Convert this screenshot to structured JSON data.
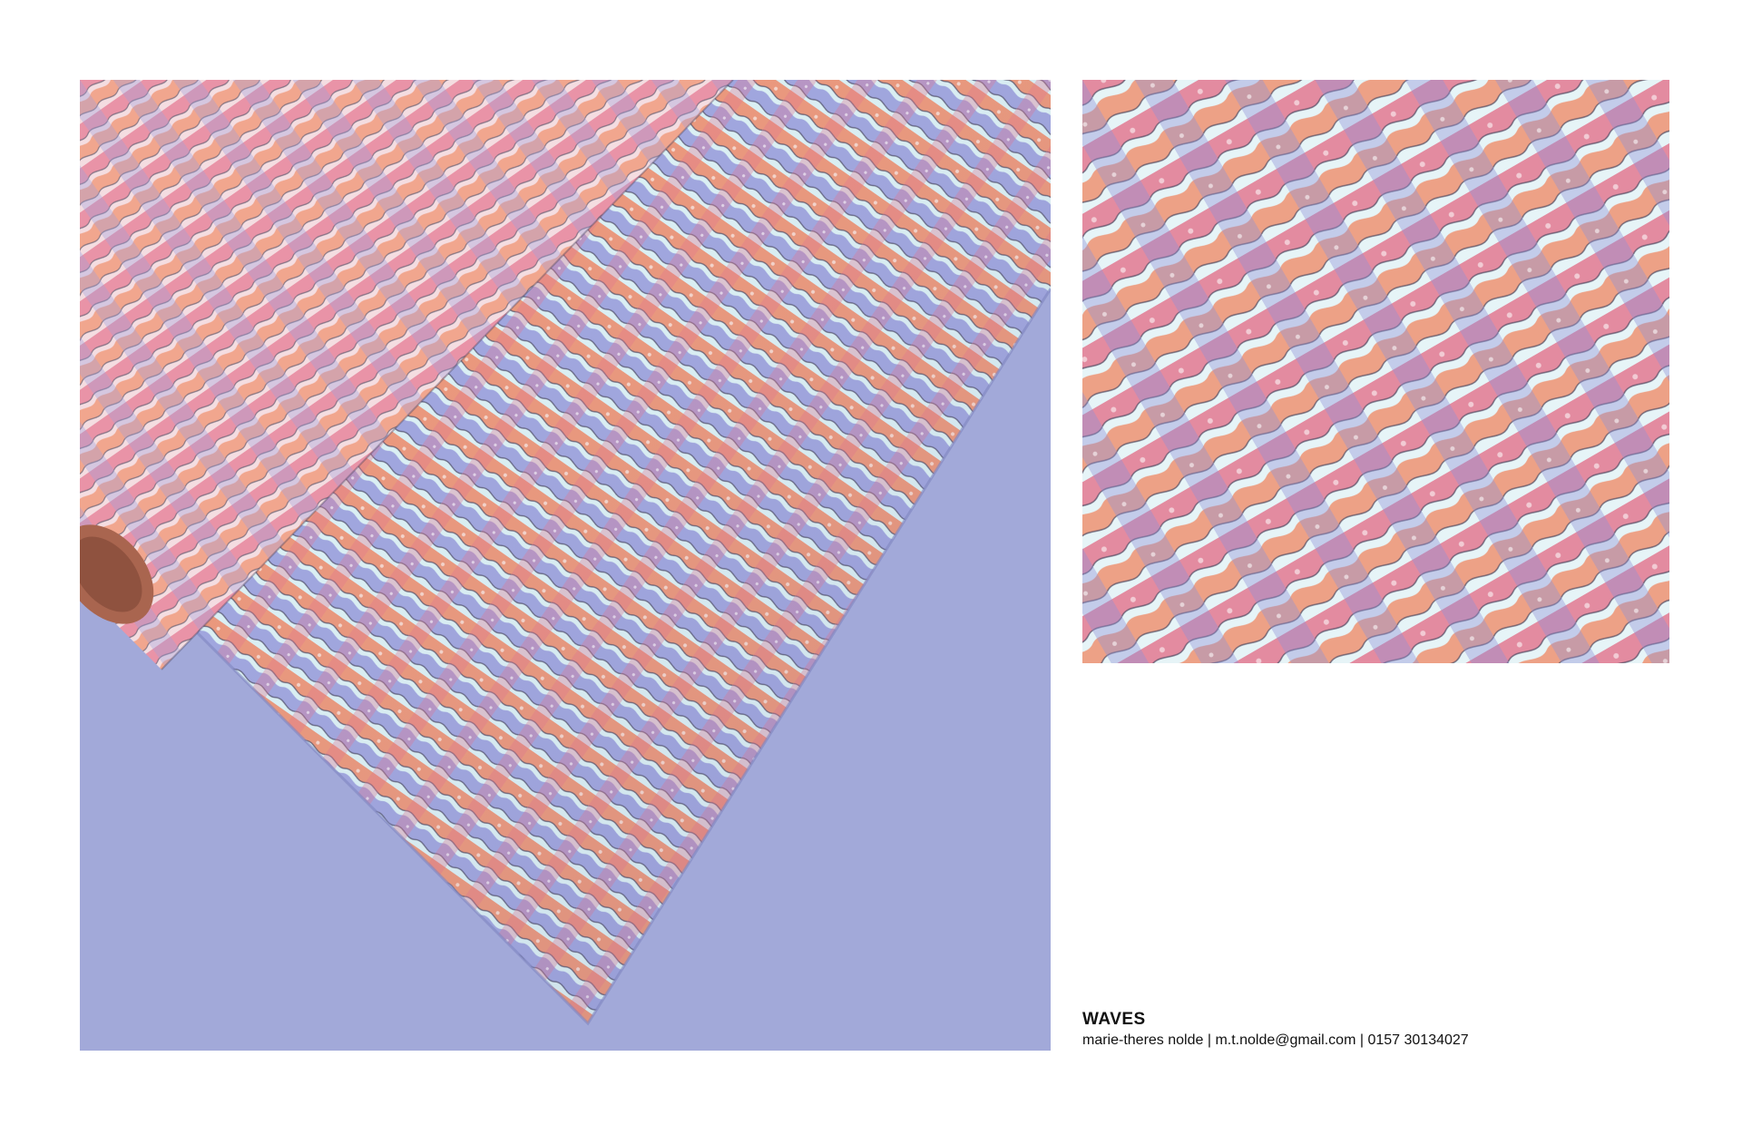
{
  "caption": {
    "title": "WAVES",
    "credits": "marie-theres nolde | m.t.nolde@gmail.com | 0157 30134027"
  },
  "colors": {
    "backdrop": "#a2a9d9",
    "roll_core": "#a9654f",
    "wave_coral": "#ef8560",
    "wave_pink": "#e2708b",
    "wave_rose": "#f0a7b8",
    "wave_periwinkle": "#8f91d8",
    "wave_ice": "#dcf2f5",
    "outline": "#3e3a55"
  },
  "images": {
    "mockup": "wrapping-paper-roll-mockup",
    "swatch": "waves-pattern-swatch"
  }
}
